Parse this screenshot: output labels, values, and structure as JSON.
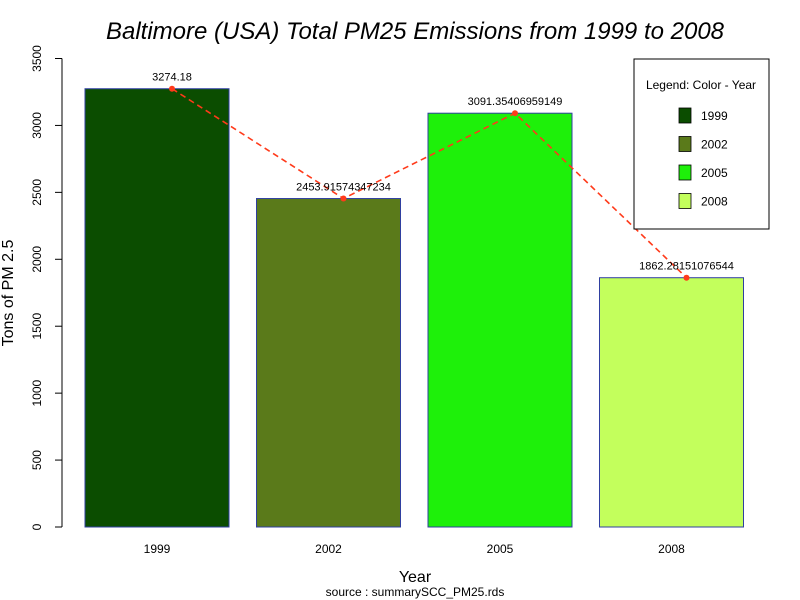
{
  "chart_data": {
    "type": "bar",
    "title": "Baltimore (USA) Total PM25 Emissions from 1999 to 2008",
    "xlabel": "Year",
    "ylabel": "Tons of PM 2.5",
    "source": "source : summarySCC_PM25.rds",
    "categories": [
      "1999",
      "2002",
      "2005",
      "2008"
    ],
    "values": [
      3274.18,
      2453.91574347234,
      3091.35406959149,
      1862.28151076544
    ],
    "value_labels": [
      "3274.18",
      "2453.91574347234",
      "3091.35406959149",
      "1862.28151076544"
    ],
    "bar_colors": [
      "#0b4d00",
      "#5a7a1a",
      "#1ef00a",
      "#c3ff5c"
    ],
    "bar_border_color": "#2f3fa0",
    "trend_line": {
      "style": "dashed",
      "color": "#ff3a1a"
    },
    "ylim": [
      0,
      3500
    ],
    "yticks": [
      0,
      500,
      1000,
      1500,
      2000,
      2500,
      3000,
      3500
    ],
    "grid": false,
    "legend": {
      "title": "Legend: Color - Year",
      "position": "top-right",
      "entries": [
        "1999",
        "2002",
        "2005",
        "2008"
      ]
    }
  }
}
